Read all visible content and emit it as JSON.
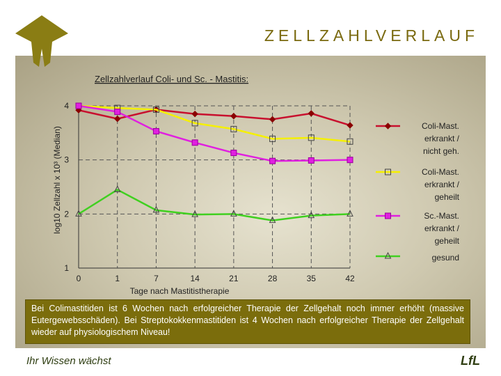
{
  "header": {
    "title": "ZELLZAHLVERLAUF"
  },
  "chart_data": {
    "type": "line",
    "title": "Zellzahlverlauf Coli- und Sc. - Mastitis:",
    "xlabel": "Tage nach Mastitistherapie",
    "ylabel": "log10 Zellzahl x 10³ (Median)",
    "categories": [
      "0",
      "1",
      "7",
      "14",
      "21",
      "28",
      "35",
      "42"
    ],
    "ylim": [
      1,
      4
    ],
    "yticks": [
      "1",
      "2",
      "3",
      "4"
    ],
    "grid": true,
    "legend_placement": "right",
    "series": [
      {
        "name": "Coli-Mast. erkrankt / nicht geh.",
        "color": "#c8102e",
        "marker": "diamond",
        "values": [
          3.92,
          3.76,
          3.93,
          3.85,
          3.81,
          3.75,
          3.86,
          3.64
        ]
      },
      {
        "name": "Coli-Mast. erkrankt / geheilt",
        "color": "#f5f000",
        "marker": "square",
        "values": [
          4.0,
          3.96,
          3.93,
          3.68,
          3.57,
          3.39,
          3.41,
          3.34
        ]
      },
      {
        "name": "Sc.-Mast. erkrankt / geheilt",
        "color": "#e020e0",
        "marker": "square",
        "values": [
          4.0,
          3.89,
          3.53,
          3.32,
          3.13,
          2.98,
          2.99,
          3.0
        ]
      },
      {
        "name": "gesund",
        "color": "#40d020",
        "marker": "triangle",
        "values": [
          2.0,
          2.45,
          2.07,
          1.99,
          2.0,
          1.88,
          1.97,
          2.0
        ]
      }
    ],
    "legend": [
      [
        "Coli-Mast.",
        "erkrankt /",
        "nicht geh."
      ],
      [
        "Coli-Mast.",
        "erkrankt /",
        "geheilt"
      ],
      [
        "Sc.-Mast.",
        "erkrankt /",
        "geheilt"
      ],
      [
        "gesund"
      ]
    ]
  },
  "caption": {
    "text": "Bei Colimastitiden ist 6 Wochen nach erfolgreicher Therapie der Zellgehalt noch immer erhöht (massive Eutergewebsschäden). Bei Streptokokkenmastitiden ist 4 Wochen nach erfolgreicher Therapie der Zellgehalt wieder auf physiologischem Niveau!"
  },
  "footer": {
    "slogan": "Ihr Wissen wächst",
    "logo": "LfL"
  },
  "colors": {
    "brand_olive": "#7b6d0c",
    "title_color": "#7a6a10"
  }
}
